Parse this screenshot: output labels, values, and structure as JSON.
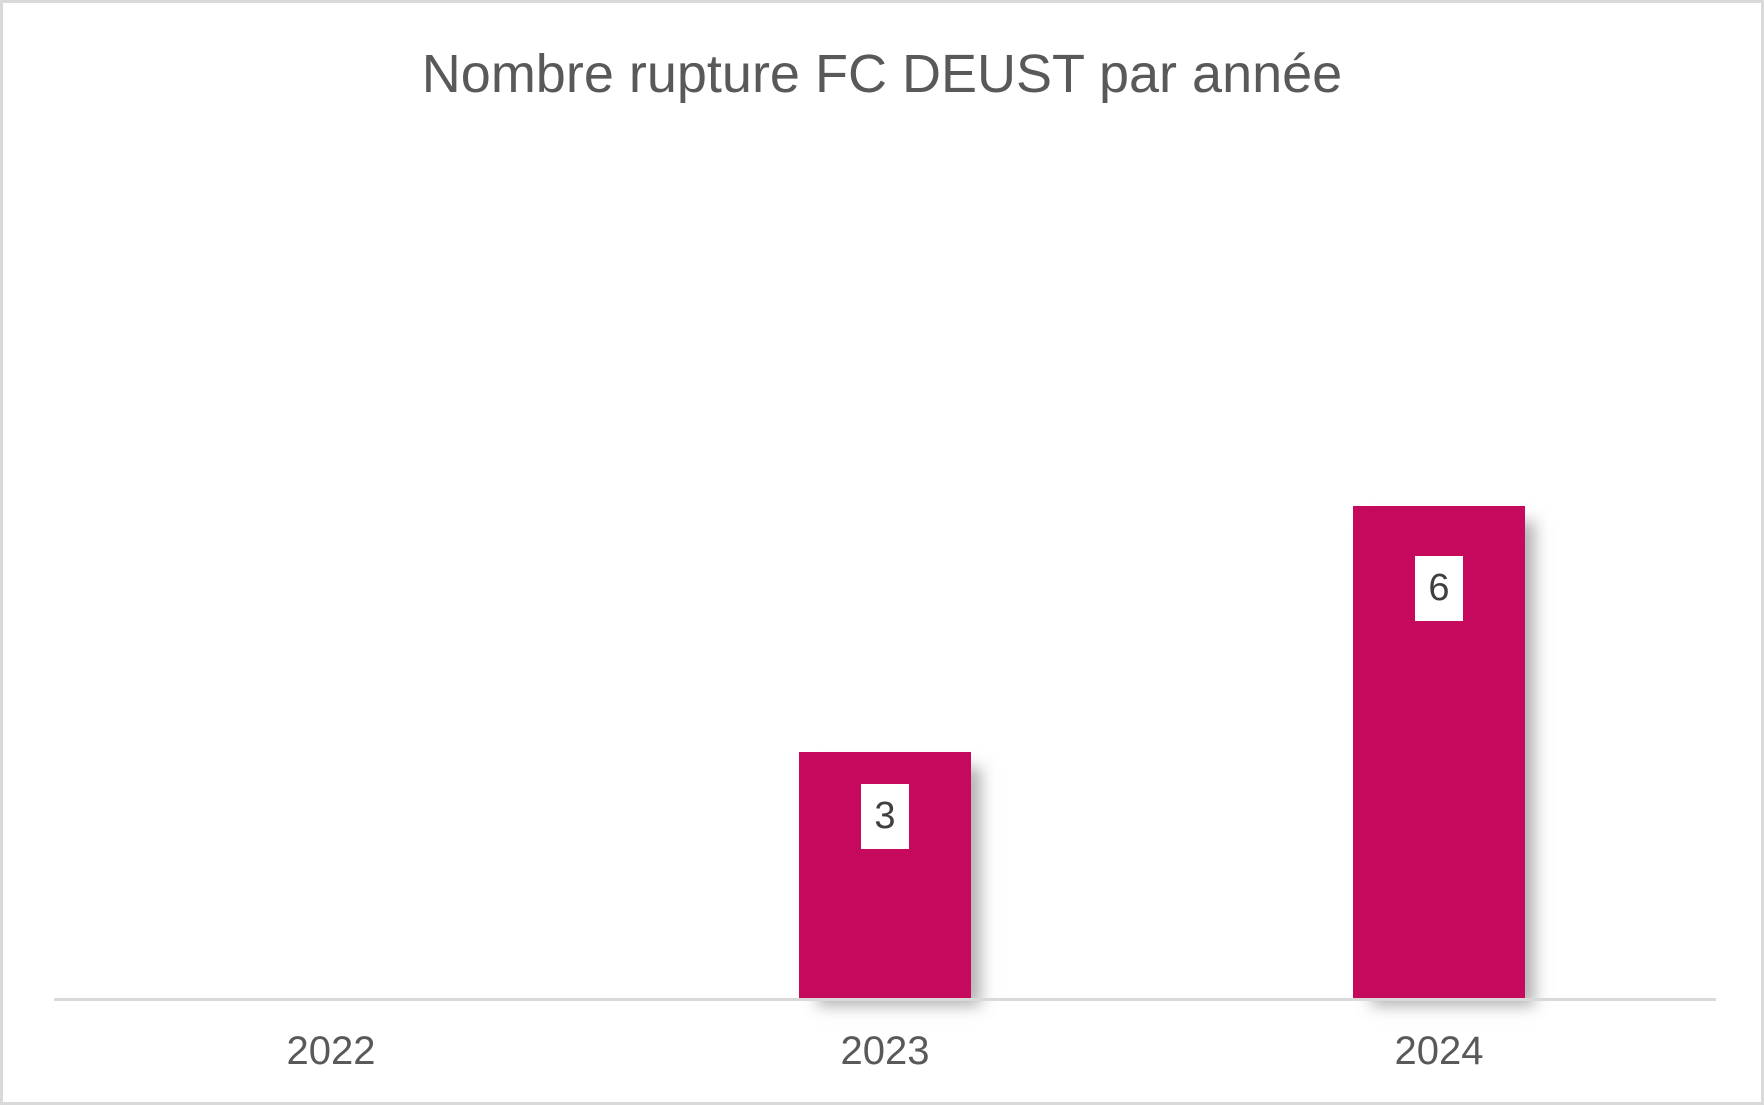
{
  "chart_data": {
    "type": "bar",
    "title": "Nombre rupture FC DEUST par année",
    "categories": [
      "2022",
      "2023",
      "2024"
    ],
    "values": [
      0,
      3,
      6
    ],
    "data_labels": [
      "",
      "3",
      "6"
    ],
    "xlabel": "",
    "ylabel": "",
    "grid": false,
    "legend": false,
    "y_axis_visible": false
  },
  "colors": {
    "bar_fill": "#C50A5E",
    "title_text": "#595959",
    "tick_text": "#595959",
    "axis_line": "#D9D9D9",
    "data_label_text": "#3F3F3F",
    "data_label_bg": "#FFFFFF",
    "frame_border": "#D9D9D9",
    "background": "#FFFFFF"
  }
}
